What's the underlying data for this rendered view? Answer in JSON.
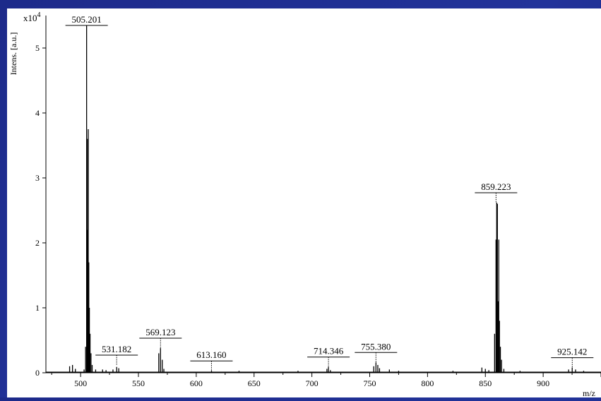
{
  "chart_data": {
    "type": "bar",
    "ylabel": "Intens. [a.u.]",
    "y_multiplier": "x10",
    "y_multiplier_exp": "4",
    "xlabel": "m/z",
    "xlim": [
      470,
      950
    ],
    "ylim": [
      0,
      5.5
    ],
    "xticks": [
      500,
      550,
      600,
      650,
      700,
      750,
      800,
      850,
      900
    ],
    "yticks": [
      0,
      1,
      2,
      3,
      4,
      5
    ],
    "grid": false,
    "peaks": [
      {
        "x": 490.5,
        "y": 0.1
      },
      {
        "x": 493.0,
        "y": 0.12
      },
      {
        "x": 495.5,
        "y": 0.06
      },
      {
        "x": 503.0,
        "y": 0.05
      },
      {
        "x": 504.3,
        "y": 0.4
      },
      {
        "x": 505.2,
        "y": 5.35
      },
      {
        "x": 505.7,
        "y": 2.2
      },
      {
        "x": 506.1,
        "y": 3.6
      },
      {
        "x": 506.6,
        "y": 3.75
      },
      {
        "x": 507.1,
        "y": 1.7
      },
      {
        "x": 507.6,
        "y": 1.0
      },
      {
        "x": 508.2,
        "y": 0.6
      },
      {
        "x": 509.0,
        "y": 0.3
      },
      {
        "x": 510.0,
        "y": 0.12
      },
      {
        "x": 513.0,
        "y": 0.05
      },
      {
        "x": 519.0,
        "y": 0.05
      },
      {
        "x": 522.0,
        "y": 0.04
      },
      {
        "x": 528.0,
        "y": 0.05
      },
      {
        "x": 531.2,
        "y": 0.09
      },
      {
        "x": 533.0,
        "y": 0.07
      },
      {
        "x": 567.6,
        "y": 0.3
      },
      {
        "x": 569.1,
        "y": 0.38
      },
      {
        "x": 570.6,
        "y": 0.2
      },
      {
        "x": 572.0,
        "y": 0.06
      },
      {
        "x": 613.2,
        "y": 0.03
      },
      {
        "x": 637.0,
        "y": 0.03
      },
      {
        "x": 688.0,
        "y": 0.03
      },
      {
        "x": 713.0,
        "y": 0.06
      },
      {
        "x": 714.3,
        "y": 0.09
      },
      {
        "x": 716.0,
        "y": 0.04
      },
      {
        "x": 753.5,
        "y": 0.1
      },
      {
        "x": 755.4,
        "y": 0.16
      },
      {
        "x": 757.0,
        "y": 0.12
      },
      {
        "x": 758.5,
        "y": 0.07
      },
      {
        "x": 767.0,
        "y": 0.05
      },
      {
        "x": 775.0,
        "y": 0.03
      },
      {
        "x": 822.0,
        "y": 0.03
      },
      {
        "x": 847.0,
        "y": 0.08
      },
      {
        "x": 850.0,
        "y": 0.06
      },
      {
        "x": 853.0,
        "y": 0.04
      },
      {
        "x": 858.0,
        "y": 0.6
      },
      {
        "x": 859.2,
        "y": 2.05
      },
      {
        "x": 859.8,
        "y": 2.62
      },
      {
        "x": 860.4,
        "y": 2.6
      },
      {
        "x": 861.0,
        "y": 1.1
      },
      {
        "x": 861.6,
        "y": 2.05
      },
      {
        "x": 862.2,
        "y": 0.8
      },
      {
        "x": 863.0,
        "y": 0.4
      },
      {
        "x": 864.0,
        "y": 0.2
      },
      {
        "x": 866.0,
        "y": 0.06
      },
      {
        "x": 880.0,
        "y": 0.03
      },
      {
        "x": 922.0,
        "y": 0.05
      },
      {
        "x": 925.1,
        "y": 0.08
      },
      {
        "x": 928.0,
        "y": 0.05
      },
      {
        "x": 935.0,
        "y": 0.03
      }
    ],
    "annotations": [
      {
        "label": "505.201",
        "x": 505.201,
        "y": 5.35
      },
      {
        "label": "531.182",
        "x": 531.182,
        "y": 0.12
      },
      {
        "label": "569.123",
        "x": 569.123,
        "y": 0.38
      },
      {
        "label": "613.160",
        "x": 613.16,
        "y": 0.03
      },
      {
        "label": "714.346",
        "x": 714.346,
        "y": 0.09
      },
      {
        "label": "755.380",
        "x": 755.38,
        "y": 0.16
      },
      {
        "label": "859.223",
        "x": 859.223,
        "y": 2.62
      },
      {
        "label": "925.142",
        "x": 925.142,
        "y": 0.08
      }
    ]
  }
}
